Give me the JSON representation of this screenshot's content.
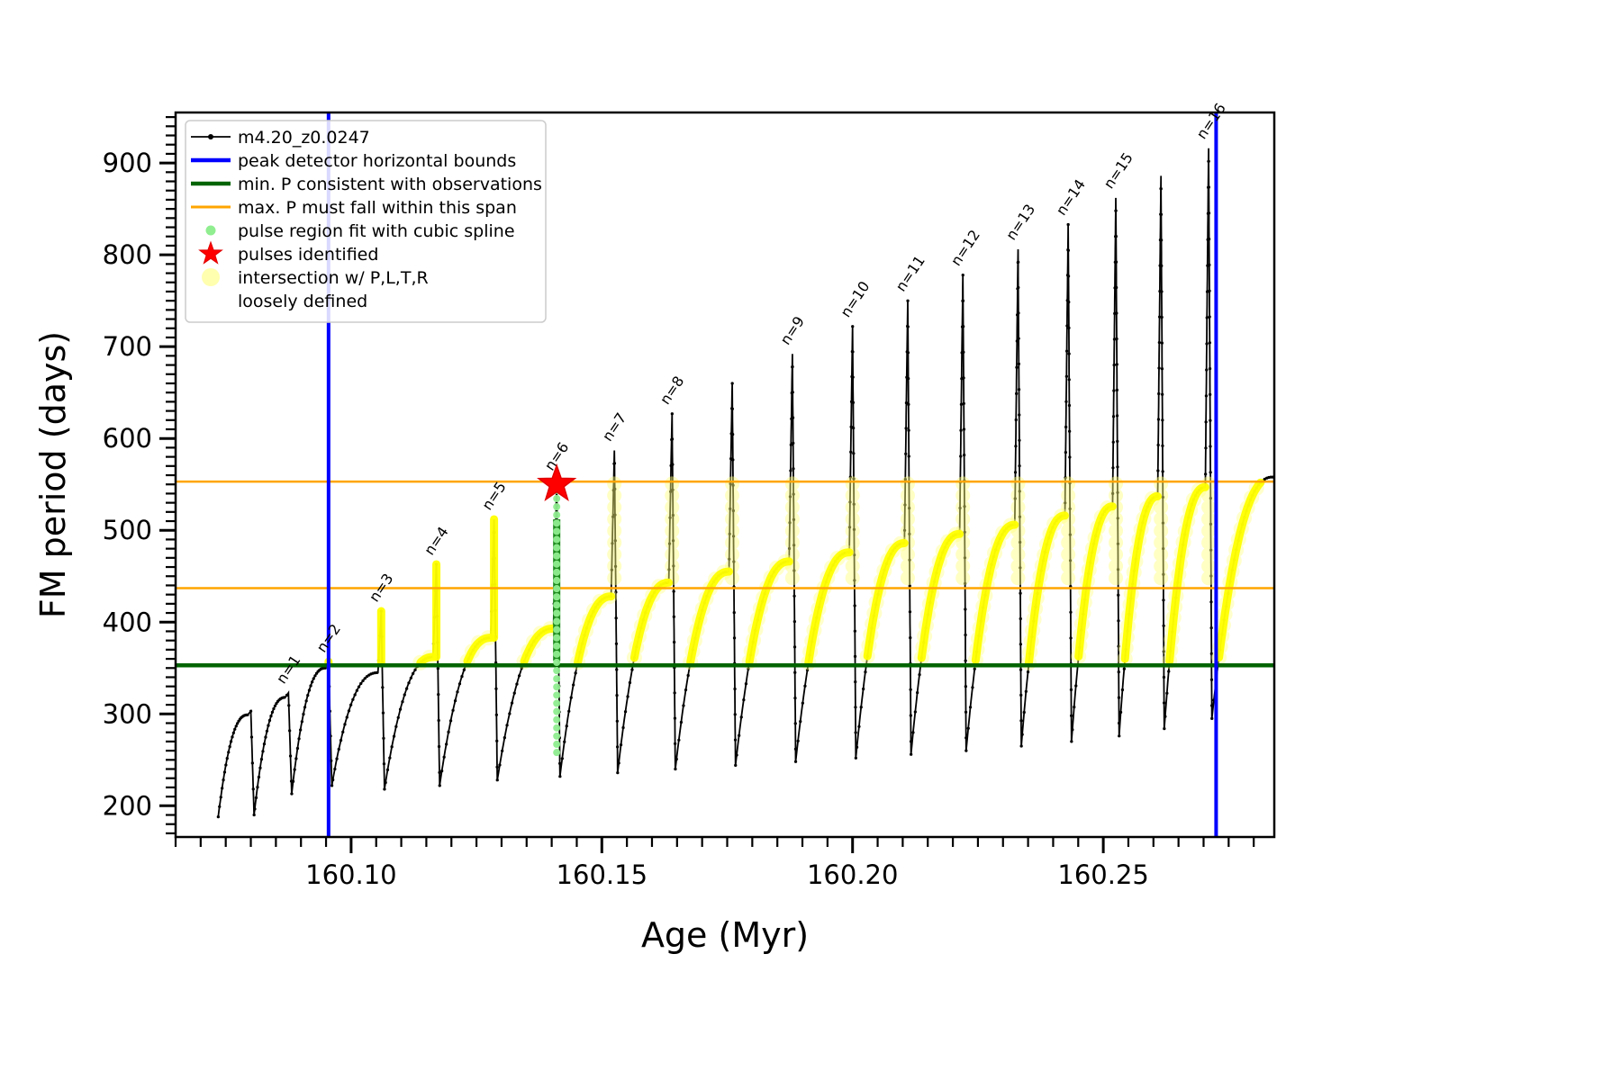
{
  "figure": {
    "background": "#ffffff"
  },
  "colors": {
    "curve": "#000000",
    "peak_bounds": "#0000ff",
    "min_p": "#006400",
    "max_p": "#ffa500",
    "intersection_bright": "#ffff00",
    "intersection_pale": "#ffff7d",
    "spline_dot": "#90ee90",
    "spline_dense": "#1d8a1d",
    "star": "#ff0000",
    "axis": "#000000",
    "legend_border": "#cccccc"
  },
  "legend": {
    "entries": [
      {
        "marker": "line-dot",
        "color": "#000000",
        "label": "m4.20_z0.0247"
      },
      {
        "marker": "thick-line",
        "color": "#0000ff",
        "label": "peak detector horizontal bounds"
      },
      {
        "marker": "thick-line",
        "color": "#006400",
        "label": "min. P consistent with observations"
      },
      {
        "marker": "line",
        "color": "#ffa500",
        "label": "max. P must fall within this span"
      },
      {
        "marker": "dot-small",
        "color": "#90ee90",
        "label": "pulse region fit with cubic spline"
      },
      {
        "marker": "star",
        "color": "#ff0000",
        "label": "pulses identified"
      },
      {
        "marker": "dot-large",
        "color": "#ffffa6",
        "label": "intersection w/ P,L,T,R",
        "label2": "loosely defined"
      }
    ]
  },
  "chart_data": {
    "type": "line",
    "title": "",
    "xlabel": "Age (Myr)",
    "ylabel": "FM period (days)",
    "xlim": [
      160.065,
      160.2841
    ],
    "ylim": [
      166,
      955
    ],
    "xticks": {
      "major": [
        160.1,
        160.15,
        160.2,
        160.25
      ],
      "labels": [
        "160.10",
        "160.15",
        "160.20",
        "160.25"
      ],
      "minor_step": 0.005
    },
    "yticks": {
      "major": [
        200,
        300,
        400,
        500,
        600,
        700,
        800,
        900
      ],
      "minor_step": 10
    },
    "ytick_labels": [
      "200",
      "300",
      "400",
      "500",
      "600",
      "700",
      "800",
      "900"
    ],
    "series_name": "m4.20_z0.0247",
    "curve_start": {
      "x": 160.0735,
      "y": 188
    },
    "curve_end": {
      "x": 160.2838,
      "y": 558
    },
    "pulses": [
      {
        "label": "",
        "x": 160.08,
        "peak": 303,
        "shoulder": 299,
        "trough_after": 190
      },
      {
        "label": "n=1",
        "x": 160.0875,
        "peak": 323,
        "shoulder": 318,
        "trough_after": 213
      },
      {
        "label": "n=2",
        "x": 160.0955,
        "peak": 357,
        "shoulder": 350,
        "trough_after": 222
      },
      {
        "label": "n=3",
        "x": 160.106,
        "peak": 412,
        "shoulder": 345,
        "trough_after": 218
      },
      {
        "label": "n=4",
        "x": 160.117,
        "peak": 463,
        "shoulder": 362,
        "trough_after": 222
      },
      {
        "label": "n=5",
        "x": 160.1285,
        "peak": 512,
        "shoulder": 383,
        "trough_after": 228
      },
      {
        "label": "n=6",
        "x": 160.141,
        "peak": 555,
        "shoulder": 393,
        "trough_after": 232
      },
      {
        "label": "n=7",
        "x": 160.1525,
        "peak": 587,
        "shoulder": 428,
        "trough_after": 236
      },
      {
        "label": "n=8",
        "x": 160.164,
        "peak": 627,
        "shoulder": 443,
        "trough_after": 240
      },
      {
        "label": "",
        "x": 160.176,
        "peak": 660,
        "shoulder": 455,
        "trough_after": 244
      },
      {
        "label": "n=9",
        "x": 160.188,
        "peak": 692,
        "shoulder": 466,
        "trough_after": 248
      },
      {
        "label": "n=10",
        "x": 160.2,
        "peak": 722,
        "shoulder": 476,
        "trough_after": 252
      },
      {
        "label": "n=11",
        "x": 160.211,
        "peak": 750,
        "shoulder": 486,
        "trough_after": 256
      },
      {
        "label": "n=12",
        "x": 160.222,
        "peak": 778,
        "shoulder": 496,
        "trough_after": 260
      },
      {
        "label": "n=13",
        "x": 160.233,
        "peak": 806,
        "shoulder": 506,
        "trough_after": 265
      },
      {
        "label": "n=14",
        "x": 160.243,
        "peak": 833,
        "shoulder": 516,
        "trough_after": 270
      },
      {
        "label": "n=15",
        "x": 160.2525,
        "peak": 862,
        "shoulder": 526,
        "trough_after": 276
      },
      {
        "label": "",
        "x": 160.2615,
        "peak": 886,
        "shoulder": 537,
        "trough_after": 284
      },
      {
        "label": "n=16",
        "x": 160.271,
        "peak": 916,
        "shoulder": 547,
        "trough_after": 295
      }
    ],
    "guides": {
      "peak_bounds_x": [
        160.0955,
        160.2725
      ],
      "min_P": 353,
      "max_P_span": [
        437,
        553
      ]
    },
    "yellow_band": [
      355,
      553
    ],
    "spline_region": {
      "x": 160.141,
      "y_min": 258,
      "y_max": 551,
      "dense_min": 358,
      "dense_max": 512
    },
    "star": {
      "x": 160.141,
      "y": 550
    }
  }
}
